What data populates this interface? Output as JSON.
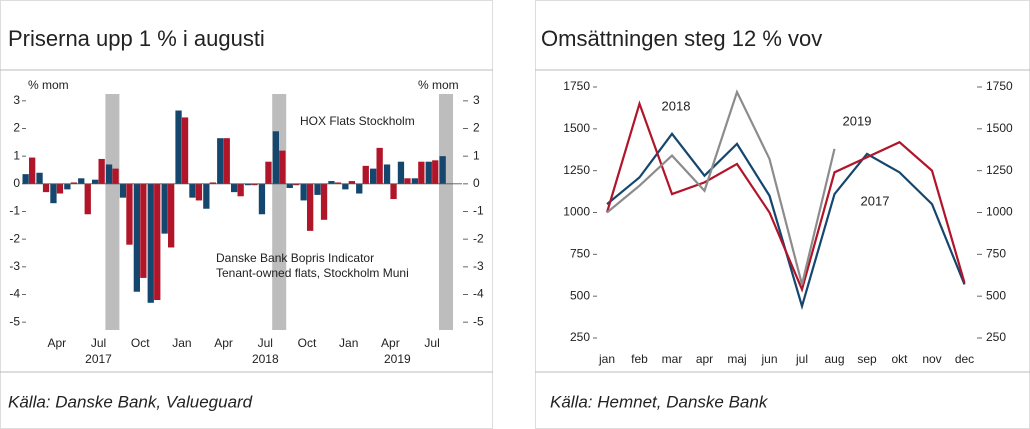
{
  "chart_data": [
    {
      "type": "bar",
      "title": "Priserna upp 1 % i augusti",
      "y_label": "% mom",
      "y2_label": "% mom",
      "categories": [
        null,
        null,
        "Apr",
        null,
        null,
        "Jul",
        null,
        null,
        "Oct",
        null,
        null,
        "Jan",
        null,
        null,
        "Apr",
        null,
        null,
        "Jul",
        null,
        null,
        "Oct",
        null,
        null,
        "Jan",
        null,
        null,
        "Apr",
        null,
        null,
        "Jul",
        null
      ],
      "years": [
        "2017",
        "2018",
        "2019"
      ],
      "series": [
        {
          "name": "Danske Bank Bopris Indicator",
          "color": "#14466e",
          "values": [
            0.35,
            0.4,
            -0.7,
            -0.2,
            0.2,
            0.15,
            0.7,
            -0.5,
            -3.9,
            -4.3,
            -1.8,
            2.65,
            -0.5,
            -0.9,
            1.65,
            -0.3,
            -0.05,
            -1.1,
            1.9,
            -0.15,
            -0.6,
            -0.4,
            0.1,
            -0.2,
            -0.35,
            0.55,
            0.7,
            0.8,
            0.2,
            0.8,
            1.0
          ]
        },
        {
          "name": "HOX Flats Stockholm",
          "color": "#b0152a",
          "values": [
            0.95,
            -0.3,
            -0.35,
            0.05,
            -1.1,
            0.9,
            0.55,
            -2.2,
            -3.4,
            -4.2,
            -2.3,
            2.4,
            -0.6,
            0.05,
            1.65,
            -0.45,
            -0.05,
            0.8,
            1.2,
            -0.05,
            -1.7,
            -1.3,
            0.05,
            0.1,
            0.65,
            1.3,
            -0.55,
            0.2,
            0.8,
            0.85,
            null
          ]
        }
      ],
      "annotations": [
        "Tenant-owned flats, Stockholm Muni"
      ],
      "ylim": [
        -5.5,
        3.5
      ],
      "yticks": [
        -5,
        -4,
        -3,
        -2,
        -1,
        0,
        1,
        2,
        3
      ],
      "y2lim": [
        -5.5,
        3.5
      ],
      "y2ticks": [
        -5,
        -4,
        -3,
        -2,
        -1,
        0,
        1,
        2,
        3
      ],
      "source": "Källa: Danske Bank, Valueguard"
    },
    {
      "type": "line",
      "title": "Omsättningen steg 12 % vov",
      "categories": [
        "jan",
        "feb",
        "mar",
        "apr",
        "maj",
        "jun",
        "jul",
        "aug",
        "sep",
        "okt",
        "nov",
        "dec"
      ],
      "series": [
        {
          "name": "2017",
          "color": "#14466e",
          "values": [
            1050,
            1210,
            1470,
            1220,
            1410,
            1100,
            440,
            1110,
            1350,
            1240,
            1050,
            570
          ]
        },
        {
          "name": "2018",
          "color": "#b0152a",
          "values": [
            1000,
            1650,
            1110,
            1180,
            1290,
            1000,
            540,
            1240,
            1330,
            1420,
            1250,
            580
          ]
        },
        {
          "name": "2019",
          "color": "#8c8c8c",
          "values": [
            1000,
            1160,
            1340,
            1130,
            1720,
            1320,
            570,
            1380,
            null,
            null,
            null,
            null
          ]
        }
      ],
      "ylim": [
        250,
        1750
      ],
      "yticks": [
        250,
        500,
        750,
        1000,
        1250,
        1500,
        1750
      ],
      "y2lim": [
        250,
        1750
      ],
      "y2ticks": [
        250,
        500,
        750,
        1000,
        1250,
        1500,
        1750
      ],
      "source": "Källa: Hemnet, Danske Bank"
    }
  ]
}
